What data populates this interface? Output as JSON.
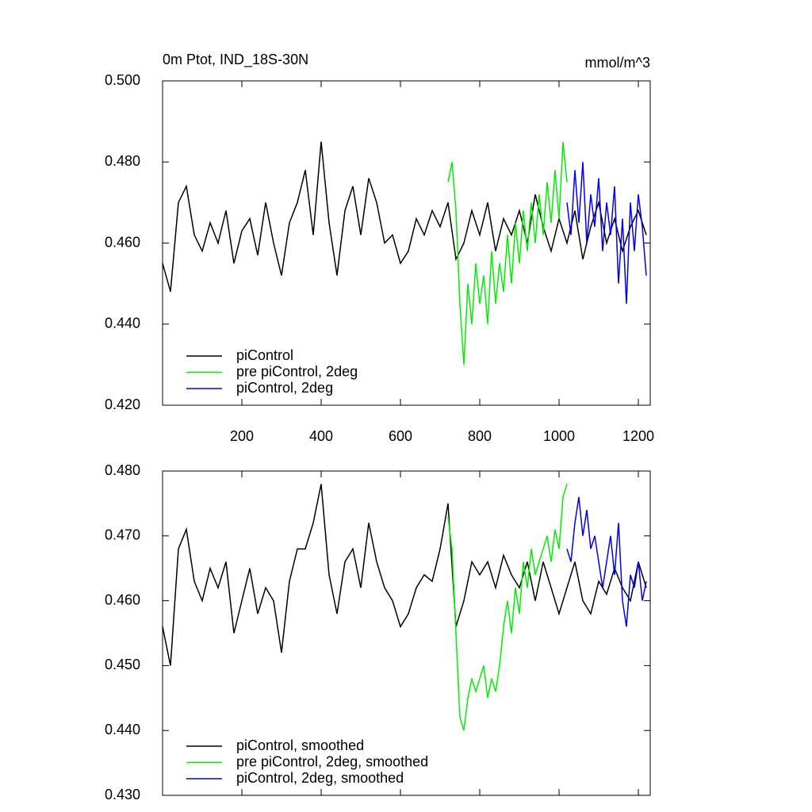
{
  "chart_data": [
    {
      "type": "line",
      "title": "0m Ptot, IND_18S-30N",
      "subtitle": "mmol/m^3",
      "xlim": [
        0,
        1230
      ],
      "xticks": [
        200,
        400,
        600,
        800,
        1000,
        1200
      ],
      "ylim": [
        0.42,
        0.5
      ],
      "yticks": [
        {
          "value": 0.42,
          "label": "0.420"
        },
        {
          "value": 0.44,
          "label": "0.440"
        },
        {
          "value": 0.46,
          "label": "0.460"
        },
        {
          "value": 0.48,
          "label": "0.480"
        },
        {
          "value": 0.5,
          "label": "0.500"
        }
      ],
      "series": [
        {
          "name": "piControl",
          "color": "#000000",
          "x": [
            0,
            20,
            40,
            60,
            80,
            100,
            120,
            140,
            160,
            180,
            200,
            220,
            240,
            260,
            280,
            300,
            320,
            340,
            360,
            380,
            400,
            420,
            440,
            460,
            480,
            500,
            520,
            540,
            560,
            580,
            600,
            620,
            640,
            660,
            680,
            700,
            720,
            740,
            760,
            780,
            800,
            820,
            840,
            860,
            880,
            900,
            920,
            940,
            960,
            980,
            1000,
            1020,
            1040,
            1060,
            1080,
            1100,
            1120,
            1140,
            1160,
            1180,
            1200,
            1220
          ],
          "values": [
            0.455,
            0.448,
            0.47,
            0.474,
            0.462,
            0.458,
            0.465,
            0.46,
            0.468,
            0.455,
            0.463,
            0.466,
            0.457,
            0.47,
            0.46,
            0.452,
            0.465,
            0.47,
            0.478,
            0.462,
            0.485,
            0.465,
            0.452,
            0.468,
            0.474,
            0.462,
            0.476,
            0.47,
            0.46,
            0.462,
            0.455,
            0.458,
            0.466,
            0.462,
            0.468,
            0.464,
            0.47,
            0.456,
            0.46,
            0.468,
            0.462,
            0.47,
            0.458,
            0.466,
            0.462,
            0.468,
            0.46,
            0.472,
            0.464,
            0.458,
            0.466,
            0.46,
            0.468,
            0.456,
            0.464,
            0.47,
            0.46,
            0.466,
            0.458,
            0.464,
            0.468,
            0.462
          ]
        },
        {
          "name": "pre piControl, 2deg",
          "color": "#00ee00",
          "x": [
            720,
            730,
            740,
            750,
            760,
            770,
            780,
            790,
            800,
            810,
            820,
            830,
            840,
            850,
            860,
            870,
            880,
            890,
            900,
            910,
            920,
            930,
            940,
            950,
            960,
            970,
            980,
            990,
            1000,
            1010,
            1020
          ],
          "values": [
            0.475,
            0.48,
            0.468,
            0.445,
            0.43,
            0.45,
            0.44,
            0.455,
            0.445,
            0.452,
            0.44,
            0.458,
            0.445,
            0.455,
            0.448,
            0.462,
            0.45,
            0.465,
            0.455,
            0.468,
            0.458,
            0.47,
            0.46,
            0.472,
            0.462,
            0.475,
            0.465,
            0.478,
            0.466,
            0.485,
            0.475
          ]
        },
        {
          "name": "piControl, 2deg",
          "color": "#0000ee",
          "x": [
            1020,
            1030,
            1040,
            1050,
            1060,
            1070,
            1080,
            1090,
            1100,
            1110,
            1120,
            1130,
            1140,
            1150,
            1160,
            1170,
            1180,
            1190,
            1200,
            1210,
            1220
          ],
          "values": [
            0.47,
            0.462,
            0.478,
            0.465,
            0.48,
            0.46,
            0.472,
            0.464,
            0.476,
            0.458,
            0.47,
            0.462,
            0.474,
            0.45,
            0.466,
            0.445,
            0.47,
            0.458,
            0.472,
            0.464,
            0.452
          ]
        }
      ]
    },
    {
      "type": "line",
      "xlim": [
        0,
        1230
      ],
      "xticks": [
        200,
        400,
        600,
        800,
        1000,
        1200
      ],
      "ylim": [
        0.43,
        0.48
      ],
      "yticks": [
        {
          "value": 0.43,
          "label": "0.430"
        },
        {
          "value": 0.44,
          "label": "0.440"
        },
        {
          "value": 0.45,
          "label": "0.450"
        },
        {
          "value": 0.46,
          "label": "0.460"
        },
        {
          "value": 0.47,
          "label": "0.470"
        },
        {
          "value": 0.48,
          "label": "0.480"
        }
      ],
      "series": [
        {
          "name": "piControl, smoothed",
          "color": "#000000",
          "x": [
            0,
            20,
            40,
            60,
            80,
            100,
            120,
            140,
            160,
            180,
            200,
            220,
            240,
            260,
            280,
            300,
            320,
            340,
            360,
            380,
            400,
            420,
            440,
            460,
            480,
            500,
            520,
            540,
            560,
            580,
            600,
            620,
            640,
            660,
            680,
            700,
            720,
            740,
            760,
            780,
            800,
            820,
            840,
            860,
            880,
            900,
            920,
            940,
            960,
            980,
            1000,
            1020,
            1040,
            1060,
            1080,
            1100,
            1120,
            1140,
            1160,
            1180,
            1200,
            1220
          ],
          "values": [
            0.456,
            0.45,
            0.468,
            0.471,
            0.463,
            0.46,
            0.465,
            0.462,
            0.466,
            0.455,
            0.46,
            0.465,
            0.458,
            0.462,
            0.46,
            0.452,
            0.463,
            0.468,
            0.468,
            0.472,
            0.478,
            0.464,
            0.458,
            0.466,
            0.468,
            0.462,
            0.472,
            0.466,
            0.462,
            0.46,
            0.456,
            0.458,
            0.462,
            0.464,
            0.463,
            0.468,
            0.475,
            0.456,
            0.46,
            0.466,
            0.464,
            0.466,
            0.462,
            0.467,
            0.464,
            0.462,
            0.466,
            0.46,
            0.466,
            0.462,
            0.458,
            0.462,
            0.466,
            0.46,
            0.458,
            0.463,
            0.461,
            0.465,
            0.462,
            0.46,
            0.466,
            0.462
          ]
        },
        {
          "name": "pre piControl, 2deg, smoothed",
          "color": "#00ee00",
          "x": [
            720,
            730,
            740,
            750,
            760,
            770,
            780,
            790,
            800,
            810,
            820,
            830,
            840,
            850,
            860,
            870,
            880,
            890,
            900,
            910,
            920,
            930,
            940,
            950,
            960,
            970,
            980,
            990,
            1000,
            1010,
            1020
          ],
          "values": [
            0.473,
            0.468,
            0.455,
            0.442,
            0.44,
            0.445,
            0.448,
            0.446,
            0.448,
            0.45,
            0.445,
            0.448,
            0.446,
            0.45,
            0.456,
            0.46,
            0.455,
            0.462,
            0.458,
            0.466,
            0.462,
            0.468,
            0.464,
            0.466,
            0.468,
            0.47,
            0.466,
            0.471,
            0.468,
            0.476,
            0.478
          ]
        },
        {
          "name": "piControl, 2deg, smoothed",
          "color": "#0000ee",
          "x": [
            1020,
            1030,
            1040,
            1050,
            1060,
            1070,
            1080,
            1090,
            1100,
            1110,
            1120,
            1130,
            1140,
            1150,
            1160,
            1170,
            1180,
            1190,
            1200,
            1210,
            1220
          ],
          "values": [
            0.468,
            0.466,
            0.472,
            0.476,
            0.47,
            0.474,
            0.468,
            0.47,
            0.466,
            0.462,
            0.466,
            0.47,
            0.464,
            0.472,
            0.46,
            0.456,
            0.464,
            0.462,
            0.466,
            0.46,
            0.463
          ]
        }
      ]
    }
  ]
}
